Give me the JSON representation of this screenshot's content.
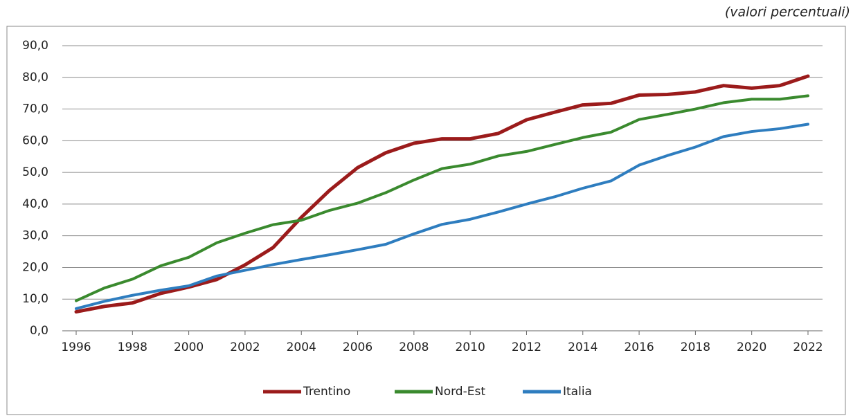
{
  "chart_data": {
    "type": "line",
    "annotation": "(valori percentuali)",
    "x": [
      1996,
      1997,
      1998,
      1999,
      2000,
      2001,
      2002,
      2003,
      2004,
      2005,
      2006,
      2007,
      2008,
      2009,
      2010,
      2011,
      2012,
      2013,
      2014,
      2015,
      2016,
      2017,
      2018,
      2019,
      2020,
      2021,
      2022
    ],
    "xlim": [
      1996,
      2022
    ],
    "xticks": [
      1996,
      1998,
      2000,
      2002,
      2004,
      2006,
      2008,
      2010,
      2012,
      2014,
      2016,
      2018,
      2020,
      2022
    ],
    "ylim": [
      0,
      90
    ],
    "yticks": [
      {
        "value": 0,
        "label": "0,0"
      },
      {
        "value": 10,
        "label": "10,0"
      },
      {
        "value": 20,
        "label": "20,0"
      },
      {
        "value": 30,
        "label": "30,0"
      },
      {
        "value": 40,
        "label": "40,0"
      },
      {
        "value": 50,
        "label": "50,0"
      },
      {
        "value": 60,
        "label": "60,0"
      },
      {
        "value": 70,
        "label": "70,0"
      },
      {
        "value": 80,
        "label": "80,0"
      },
      {
        "value": 90,
        "label": "90,0"
      }
    ],
    "grid": true,
    "legend": "bottom",
    "series": [
      {
        "name": "Trentino",
        "color": "#9b1b1b",
        "values": [
          6.0,
          7.7,
          8.8,
          11.8,
          13.8,
          16.2,
          20.8,
          26.3,
          35.8,
          44.3,
          51.5,
          56.2,
          59.2,
          60.6,
          60.6,
          62.3,
          66.6,
          69.0,
          71.3,
          71.8,
          74.4,
          74.6,
          75.4,
          77.4,
          76.6,
          77.4,
          80.4
        ]
      },
      {
        "name": "Nord-Est",
        "color": "#3a8a2e",
        "values": [
          9.5,
          13.5,
          16.3,
          20.5,
          23.2,
          27.8,
          30.8,
          33.5,
          34.9,
          38.0,
          40.3,
          43.6,
          47.6,
          51.2,
          52.6,
          55.2,
          56.6,
          58.8,
          61.0,
          62.7,
          66.7,
          68.3,
          70.0,
          72.0,
          73.1,
          73.1,
          74.2
        ]
      },
      {
        "name": "Italia",
        "color": "#2e7dbf",
        "values": [
          7.0,
          9.3,
          11.2,
          12.8,
          14.2,
          17.3,
          19.1,
          20.9,
          22.5,
          24.0,
          25.6,
          27.3,
          30.6,
          33.6,
          35.2,
          37.5,
          40.0,
          42.3,
          45.0,
          47.3,
          52.3,
          55.3,
          58.0,
          61.3,
          62.9,
          63.8,
          65.2
        ]
      }
    ]
  }
}
